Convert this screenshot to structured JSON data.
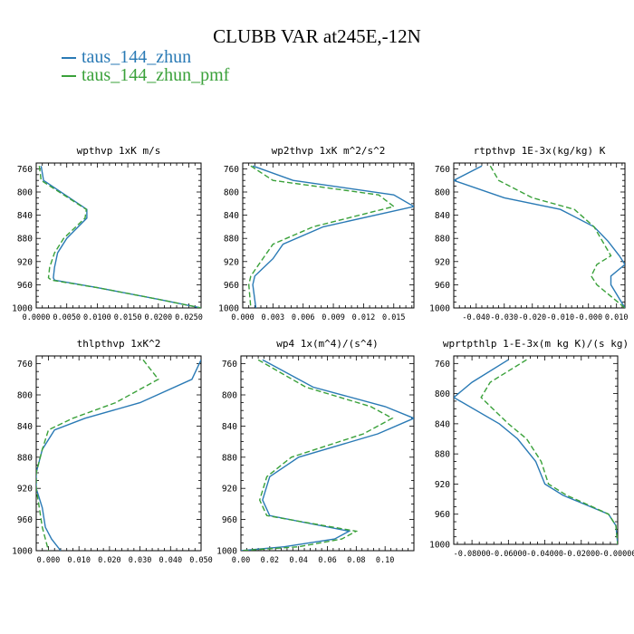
{
  "figure": {
    "title": "CLUBB VAR at245E,-12N",
    "legend": [
      {
        "label": "taus_144_zhun",
        "color": "#2a7ab5",
        "dash": "solid"
      },
      {
        "label": "taus_144_zhun_pmf",
        "color": "#3aa13a",
        "dash": "dashed"
      }
    ]
  },
  "chart_data": [
    {
      "type": "line",
      "title": "wpthvp  1xK m/s",
      "ylim": [
        1000,
        750
      ],
      "xlim": [
        0,
        0.027
      ],
      "xticks": [
        "0.0000",
        "0.0050",
        "0.0100",
        "0.0150",
        "0.0200",
        "0.0250"
      ],
      "xtick_values": [
        0,
        0.005,
        0.01,
        0.015,
        0.02,
        0.025
      ],
      "yticks": [
        "760",
        "800",
        "840",
        "880",
        "920",
        "960",
        "1000"
      ],
      "ytick_values": [
        760,
        800,
        840,
        880,
        920,
        960,
        1000
      ],
      "series": [
        {
          "name": "taus_144_zhun",
          "x": [
            0.0008,
            0.0012,
            0.0083,
            0.0083,
            0.005,
            0.0035,
            0.003,
            0.0028,
            0.003,
            0.01,
            0.02,
            0.027
          ],
          "y": [
            755,
            780,
            830,
            845,
            880,
            905,
            930,
            948,
            952,
            965,
            985,
            1000
          ]
        },
        {
          "name": "taus_144_zhun_pmf",
          "x": [
            0.0005,
            0.0008,
            0.0082,
            0.008,
            0.0045,
            0.003,
            0.0022,
            0.002,
            0.0025,
            0.01,
            0.02,
            0.027
          ],
          "y": [
            755,
            780,
            830,
            845,
            880,
            905,
            930,
            948,
            952,
            965,
            985,
            1000
          ]
        }
      ]
    },
    {
      "type": "line",
      "title": "wp2thvp  1xK m^2/s^2",
      "ylim": [
        1000,
        750
      ],
      "xlim": [
        0,
        0.017
      ],
      "xticks": [
        "0.000",
        "0.003",
        "0.006",
        "0.009",
        "0.012",
        "0.015"
      ],
      "xtick_values": [
        0,
        0.003,
        0.006,
        0.009,
        0.012,
        0.015
      ],
      "yticks": [
        "760",
        "800",
        "840",
        "880",
        "920",
        "960",
        "1000"
      ],
      "ytick_values": [
        760,
        800,
        840,
        880,
        920,
        960,
        1000
      ],
      "series": [
        {
          "name": "taus_144_zhun",
          "x": [
            0.001,
            0.005,
            0.015,
            0.017,
            0.008,
            0.004,
            0.003,
            0.0018,
            0.0012,
            0.001,
            0.0013
          ],
          "y": [
            755,
            780,
            805,
            825,
            860,
            890,
            915,
            935,
            945,
            960,
            1000
          ]
        },
        {
          "name": "taus_144_zhun_pmf",
          "x": [
            0.0008,
            0.003,
            0.0135,
            0.015,
            0.007,
            0.003,
            0.002,
            0.0012,
            0.0008,
            0.0006,
            0.0008
          ],
          "y": [
            755,
            780,
            805,
            825,
            860,
            890,
            915,
            935,
            945,
            960,
            1000
          ]
        }
      ]
    },
    {
      "type": "line",
      "title": "rtpthvp  1E-3x(kg/kg) K",
      "ylim": [
        1000,
        750
      ],
      "xlim": [
        -0.048,
        0.013
      ],
      "xticks": [
        "-0.040",
        "-0.030",
        "-0.020",
        "-0.010",
        "-0.000",
        "0.010"
      ],
      "xtick_values": [
        -0.04,
        -0.03,
        -0.02,
        -0.01,
        0,
        0.01
      ],
      "yticks": [
        "760",
        "800",
        "840",
        "880",
        "920",
        "960",
        "1000"
      ],
      "ytick_values": [
        760,
        800,
        840,
        880,
        920,
        960,
        1000
      ],
      "series": [
        {
          "name": "taus_144_zhun",
          "x": [
            -0.038,
            -0.048,
            -0.03,
            -0.01,
            0.002,
            0.007,
            0.011,
            0.013,
            0.008,
            0.008,
            0.013
          ],
          "y": [
            755,
            780,
            810,
            830,
            860,
            885,
            910,
            925,
            945,
            960,
            1000
          ]
        },
        {
          "name": "taus_144_zhun_pmf",
          "x": [
            -0.035,
            -0.032,
            -0.02,
            -0.005,
            0.002,
            0.005,
            0.008,
            0.003,
            0.001,
            0.003,
            0.013
          ],
          "y": [
            755,
            780,
            810,
            830,
            860,
            885,
            910,
            925,
            945,
            960,
            1000
          ]
        }
      ]
    },
    {
      "type": "line",
      "title": "thlpthvp  1xK^2",
      "ylim": [
        1000,
        750
      ],
      "xlim": [
        -0.004,
        0.05
      ],
      "xticks": [
        "0.000",
        "0.010",
        "0.020",
        "0.030",
        "0.040",
        "0.050"
      ],
      "xtick_values": [
        0,
        0.01,
        0.02,
        0.03,
        0.04,
        0.05
      ],
      "yticks": [
        "760",
        "800",
        "840",
        "880",
        "920",
        "960",
        "1000"
      ],
      "ytick_values": [
        760,
        800,
        840,
        880,
        920,
        960,
        1000
      ],
      "series": [
        {
          "name": "taus_144_zhun",
          "x": [
            0.05,
            0.047,
            0.03,
            0.012,
            0.002,
            -0.002,
            -0.004,
            -0.004,
            -0.002,
            -0.001,
            0.001,
            0.004
          ],
          "y": [
            755,
            780,
            810,
            830,
            845,
            870,
            900,
            920,
            945,
            970,
            985,
            1000
          ]
        },
        {
          "name": "taus_144_zhun_pmf",
          "x": [
            0.031,
            0.036,
            0.022,
            0.008,
            0.0,
            -0.002,
            -0.004,
            -0.004,
            -0.003,
            -0.002,
            -0.001,
            0.0
          ],
          "y": [
            755,
            780,
            810,
            830,
            845,
            870,
            900,
            920,
            945,
            970,
            985,
            1000
          ]
        }
      ]
    },
    {
      "type": "line",
      "title": "wp4  1x(m^4)/(s^4)",
      "ylim": [
        1000,
        750
      ],
      "xlim": [
        0,
        0.12
      ],
      "xticks": [
        "0.00",
        "0.02",
        "0.04",
        "0.06",
        "0.08",
        "0.10"
      ],
      "xtick_values": [
        0,
        0.02,
        0.04,
        0.06,
        0.08,
        0.1
      ],
      "yticks": [
        "760",
        "800",
        "840",
        "880",
        "920",
        "960",
        "1000"
      ],
      "ytick_values": [
        760,
        800,
        840,
        880,
        920,
        960,
        1000
      ],
      "series": [
        {
          "name": "taus_144_zhun",
          "x": [
            0.015,
            0.05,
            0.1,
            0.12,
            0.095,
            0.04,
            0.02,
            0.015,
            0.02,
            0.075,
            0.065,
            0.03,
            0.0
          ],
          "y": [
            755,
            790,
            815,
            830,
            850,
            880,
            905,
            935,
            955,
            975,
            985,
            995,
            1000
          ]
        },
        {
          "name": "taus_144_zhun_pmf",
          "x": [
            0.012,
            0.045,
            0.09,
            0.105,
            0.085,
            0.035,
            0.018,
            0.013,
            0.018,
            0.08,
            0.07,
            0.04,
            0.0
          ],
          "y": [
            755,
            790,
            815,
            830,
            850,
            880,
            905,
            935,
            955,
            975,
            985,
            995,
            1000
          ]
        }
      ]
    },
    {
      "type": "line",
      "title": "wprtpthlp  1-E-3x(m kg K)/(s kg)",
      "ylim": [
        1000,
        750
      ],
      "xlim": [
        -0.09,
        0
      ],
      "xticks": [
        "-0.08000",
        "-0.06000",
        "-0.04000",
        "-0.02000",
        "-0.00000"
      ],
      "xtick_values": [
        -0.08,
        -0.06,
        -0.04,
        -0.02,
        0
      ],
      "yticks": [
        "760",
        "800",
        "840",
        "880",
        "920",
        "960",
        "1000"
      ],
      "ytick_values": [
        760,
        800,
        840,
        880,
        920,
        960,
        1000
      ],
      "series": [
        {
          "name": "taus_144_zhun",
          "x": [
            -0.06,
            -0.08,
            -0.09,
            -0.065,
            -0.055,
            -0.045,
            -0.04,
            -0.03,
            -0.015,
            -0.005,
            -0.001,
            0.0
          ],
          "y": [
            755,
            785,
            805,
            840,
            860,
            890,
            920,
            935,
            950,
            960,
            975,
            1000
          ]
        },
        {
          "name": "taus_144_zhun_pmf",
          "x": [
            -0.05,
            -0.07,
            -0.075,
            -0.06,
            -0.05,
            -0.042,
            -0.038,
            -0.028,
            -0.014,
            -0.005,
            -0.001,
            0.0
          ],
          "y": [
            755,
            785,
            805,
            840,
            860,
            890,
            920,
            935,
            950,
            960,
            975,
            1000
          ]
        }
      ]
    }
  ]
}
